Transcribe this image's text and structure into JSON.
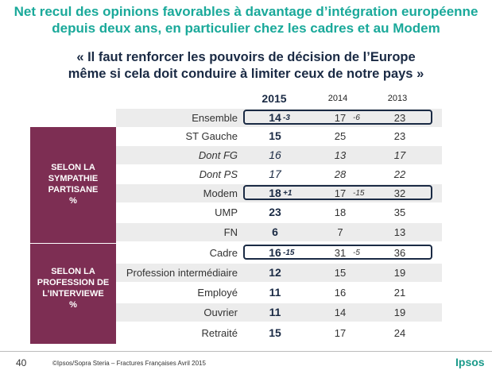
{
  "title_line1": "Net recul des opinions favorables à davantage d’intégration européenne",
  "title_line2": "depuis deux ans, en particulier chez les cadres et au Modem",
  "question_line1": "« Il faut renforcer les pouvoirs de décision de l’Europe",
  "question_line2": "même si cela doit conduire à limiter ceux de notre pays  »",
  "columns": {
    "y2015": "2015",
    "y2014": "2014",
    "y2013": "2013"
  },
  "groups": {
    "partisan": [
      "SELON LA",
      "SYMPATHIE",
      "PARTISANE",
      "%"
    ],
    "profession": [
      "SELON LA",
      "PROFESSION DE",
      "L’INTERVIEWE",
      "%"
    ]
  },
  "chart_data": {
    "type": "table",
    "columns": [
      "2015",
      "2014",
      "2013"
    ],
    "rows": [
      {
        "label": "Ensemble",
        "y2015": "14",
        "evo_2015": "-3",
        "y2014": "17",
        "evo_2014": "-6",
        "y2013": "23",
        "highlight": true
      },
      {
        "label": "ST Gauche",
        "y2015": "15",
        "evo_2015": "",
        "y2014": "25",
        "evo_2014": "",
        "y2013": "23"
      },
      {
        "label": "Dont FG",
        "y2015": "16",
        "evo_2015": "",
        "y2014": "13",
        "evo_2014": "",
        "y2013": "17",
        "italic": true
      },
      {
        "label": "Dont PS",
        "y2015": "17",
        "evo_2015": "",
        "y2014": "28",
        "evo_2014": "",
        "y2013": "22",
        "italic": true
      },
      {
        "label": "Modem",
        "y2015": "18",
        "evo_2015": "+1",
        "y2014": "17",
        "evo_2014": "-15",
        "y2013": "32",
        "highlight": true
      },
      {
        "label": "UMP",
        "y2015": "23",
        "evo_2015": "",
        "y2014": "18",
        "evo_2014": "",
        "y2013": "35"
      },
      {
        "label": "FN",
        "y2015": "6",
        "evo_2015": "",
        "y2014": "7",
        "evo_2014": "",
        "y2013": "13"
      },
      {
        "label": "Cadre",
        "y2015": "16",
        "evo_2015": "-15",
        "y2014": "31",
        "evo_2014": "-5",
        "y2013": "36",
        "highlight": true
      },
      {
        "label": "Profession intermédiaire",
        "y2015": "12",
        "evo_2015": "",
        "y2014": "15",
        "evo_2014": "",
        "y2013": "19"
      },
      {
        "label": "Employé",
        "y2015": "11",
        "evo_2015": "",
        "y2014": "16",
        "evo_2014": "",
        "y2013": "21"
      },
      {
        "label": "Ouvrier",
        "y2015": "11",
        "evo_2015": "",
        "y2014": "14",
        "evo_2014": "",
        "y2013": "19"
      },
      {
        "label": "Retraité",
        "y2015": "15",
        "evo_2015": "",
        "y2014": "17",
        "evo_2014": "",
        "y2013": "24"
      }
    ]
  },
  "footer": {
    "page": "40",
    "source": "©Ipsos/Sopra Steria –  Fractures Françaises  Avril 2015",
    "logo": "Ipsos"
  },
  "colors": {
    "title": "#1aa99a",
    "navy": "#1a2a44",
    "maroon": "#7d2e53",
    "stripe": "#ececec"
  }
}
